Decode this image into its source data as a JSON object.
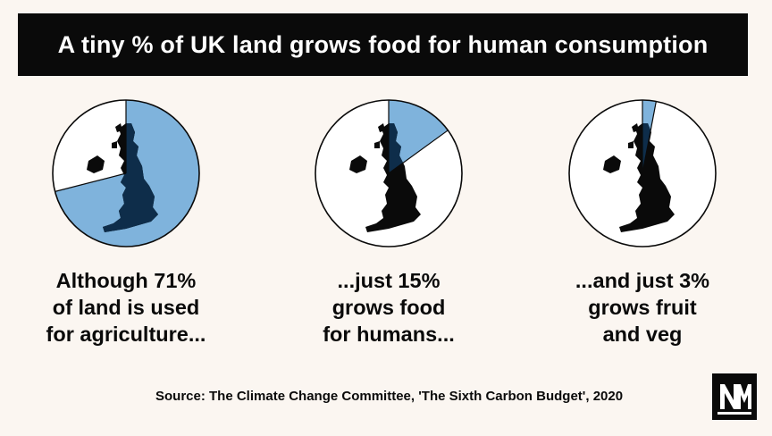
{
  "title": "A tiny % of UK land grows food for human consumption",
  "colors": {
    "background": "#fbf6f1",
    "title_bar": "#0a0a0a",
    "slice": "#7fb3dc",
    "slice_dark": "#0e2d4a",
    "map": "#0a0a0a",
    "pie_bg": "#ffffff"
  },
  "chart_data": [
    {
      "type": "pie",
      "values": [
        71,
        29
      ],
      "unit": "%",
      "caption": [
        "Although 71%",
        "of land is used",
        "for agriculture..."
      ]
    },
    {
      "type": "pie",
      "values": [
        15,
        85
      ],
      "unit": "%",
      "caption": [
        "...just 15%",
        "grows food",
        "for humans..."
      ]
    },
    {
      "type": "pie",
      "values": [
        3,
        97
      ],
      "unit": "%",
      "caption": [
        "...and just 3%",
        "grows fruit",
        "and veg"
      ]
    }
  ],
  "source": "Source: The Climate Change Committee, 'The Sixth Carbon Budget', 2020",
  "logo_icon": "nm-logo-icon"
}
